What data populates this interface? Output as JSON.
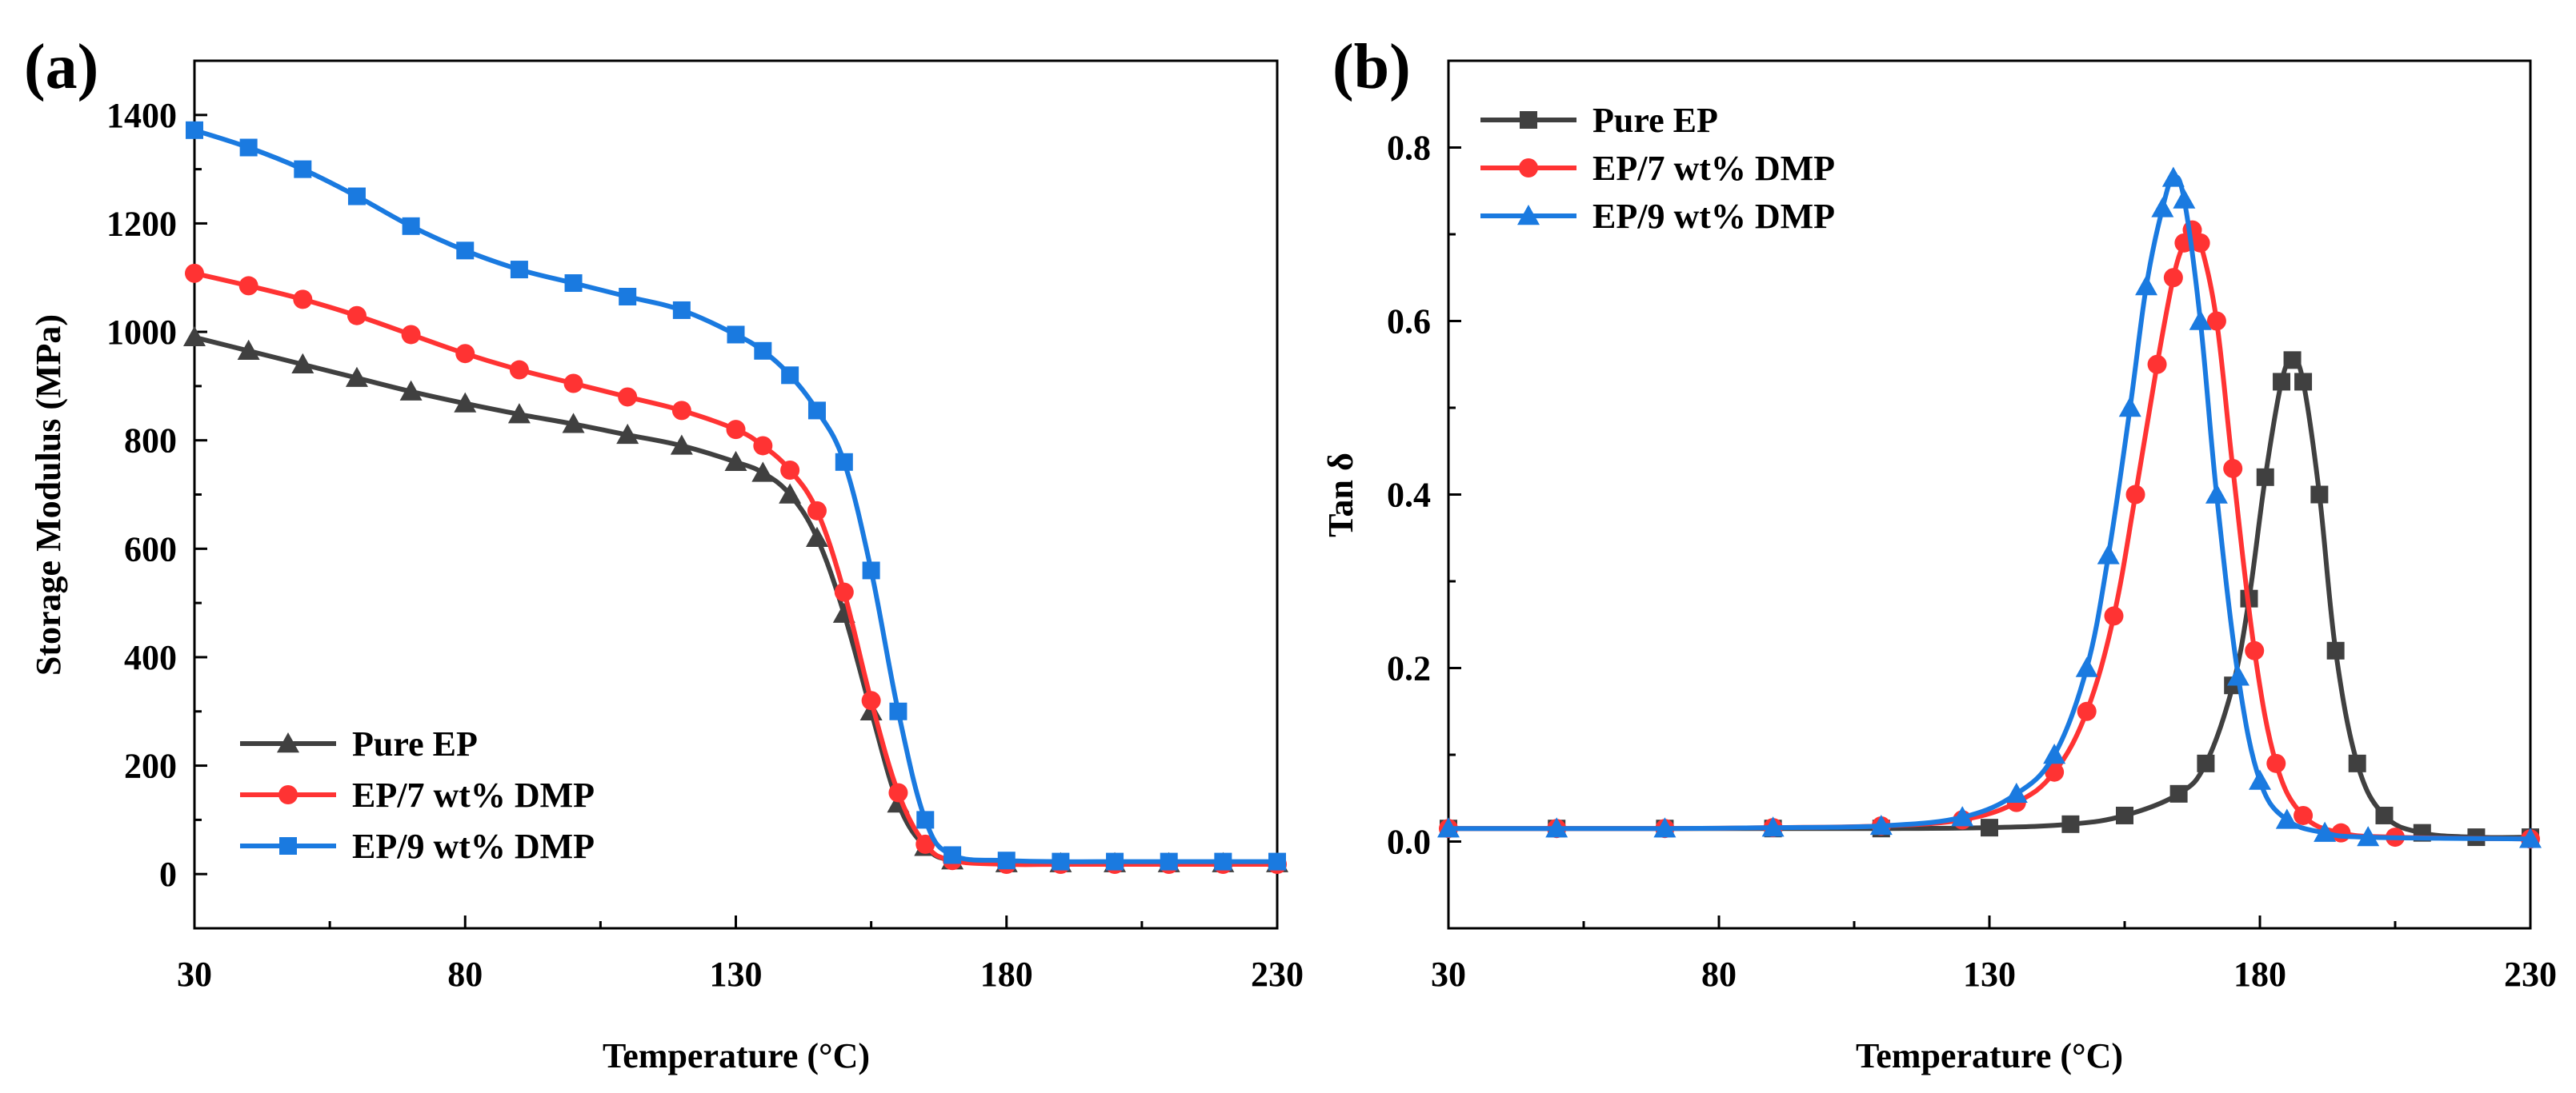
{
  "chart_data": [
    {
      "panel_label": "(a)",
      "type": "line",
      "xlabel": "Temperature (°C)",
      "ylabel": "Storage Modulus (MPa)",
      "xlim": [
        30,
        230
      ],
      "ylim": [
        -100,
        1500
      ],
      "xticks": [
        30,
        80,
        130,
        180,
        230
      ],
      "yticks": [
        0,
        200,
        400,
        600,
        800,
        1000,
        1200,
        1400
      ],
      "legend_position": "bottom-left",
      "series": [
        {
          "name": "Pure EP",
          "color": "#404040",
          "marker": "triangle",
          "x": [
            30,
            40,
            50,
            60,
            70,
            80,
            90,
            100,
            110,
            120,
            130,
            135,
            140,
            145,
            150,
            155,
            160,
            165,
            170,
            180,
            190,
            200,
            210,
            220,
            230
          ],
          "y": [
            990,
            965,
            940,
            915,
            890,
            868,
            848,
            830,
            810,
            790,
            760,
            740,
            700,
            620,
            480,
            300,
            130,
            50,
            25,
            20,
            20,
            20,
            20,
            20,
            20
          ]
        },
        {
          "name": "EP/7 wt% DMP",
          "color": "#ff3333",
          "marker": "circle",
          "x": [
            30,
            40,
            50,
            60,
            70,
            80,
            90,
            100,
            110,
            120,
            130,
            135,
            140,
            145,
            150,
            155,
            160,
            165,
            170,
            180,
            190,
            200,
            210,
            220,
            230
          ],
          "y": [
            1108,
            1085,
            1060,
            1030,
            995,
            960,
            930,
            905,
            880,
            855,
            820,
            790,
            745,
            670,
            520,
            320,
            150,
            55,
            25,
            18,
            18,
            18,
            18,
            18,
            18
          ]
        },
        {
          "name": "EP/9 wt% DMP",
          "color": "#1a7ae0",
          "marker": "square",
          "x": [
            30,
            40,
            50,
            60,
            70,
            80,
            90,
            100,
            110,
            120,
            130,
            135,
            140,
            145,
            150,
            155,
            160,
            165,
            170,
            180,
            190,
            200,
            210,
            220,
            230
          ],
          "y": [
            1372,
            1340,
            1300,
            1250,
            1195,
            1150,
            1115,
            1090,
            1065,
            1040,
            995,
            965,
            920,
            855,
            760,
            560,
            300,
            100,
            35,
            25,
            23,
            23,
            23,
            23,
            23
          ]
        }
      ]
    },
    {
      "panel_label": "(b)",
      "type": "line",
      "xlabel": "Temperature (°C)",
      "ylabel": "Tan δ",
      "xlim": [
        30,
        230
      ],
      "ylim": [
        -0.1,
        0.9
      ],
      "xticks": [
        30,
        80,
        130,
        180,
        230
      ],
      "yticks": [
        0.0,
        0.2,
        0.4,
        0.6,
        0.8
      ],
      "ytick_labels": [
        "0.0",
        "0.2",
        "0.4",
        "0.6",
        "0.8"
      ],
      "legend_position": "top-left",
      "series": [
        {
          "name": "Pure EP",
          "color": "#404040",
          "marker": "square",
          "x": [
            30,
            50,
            70,
            90,
            110,
            130,
            145,
            155,
            165,
            170,
            175,
            178,
            181,
            184,
            186,
            188,
            191,
            194,
            198,
            203,
            210,
            220,
            230
          ],
          "y": [
            0.015,
            0.015,
            0.015,
            0.015,
            0.015,
            0.016,
            0.02,
            0.03,
            0.055,
            0.09,
            0.18,
            0.28,
            0.42,
            0.53,
            0.555,
            0.53,
            0.4,
            0.22,
            0.09,
            0.03,
            0.01,
            0.005,
            0.005
          ]
        },
        {
          "name": "EP/7 wt% DMP",
          "color": "#ff3333",
          "marker": "circle",
          "x": [
            30,
            50,
            70,
            90,
            110,
            125,
            135,
            142,
            148,
            153,
            157,
            161,
            164,
            166,
            167.5,
            169,
            172,
            175,
            179,
            183,
            188,
            195,
            205,
            230
          ],
          "y": [
            0.015,
            0.015,
            0.015,
            0.016,
            0.018,
            0.025,
            0.045,
            0.08,
            0.15,
            0.26,
            0.4,
            0.55,
            0.65,
            0.69,
            0.705,
            0.69,
            0.6,
            0.43,
            0.22,
            0.09,
            0.03,
            0.01,
            0.005,
            0.003
          ]
        },
        {
          "name": "EP/9 wt% DMP",
          "color": "#1a7ae0",
          "marker": "triangle",
          "x": [
            30,
            50,
            70,
            90,
            110,
            125,
            135,
            142,
            148,
            152,
            156,
            159,
            162,
            164,
            166,
            169,
            172,
            176,
            180,
            185,
            192,
            200,
            230
          ],
          "y": [
            0.015,
            0.015,
            0.015,
            0.016,
            0.018,
            0.028,
            0.055,
            0.1,
            0.2,
            0.33,
            0.5,
            0.64,
            0.73,
            0.765,
            0.74,
            0.6,
            0.4,
            0.19,
            0.07,
            0.025,
            0.01,
            0.005,
            0.003
          ]
        }
      ]
    }
  ]
}
